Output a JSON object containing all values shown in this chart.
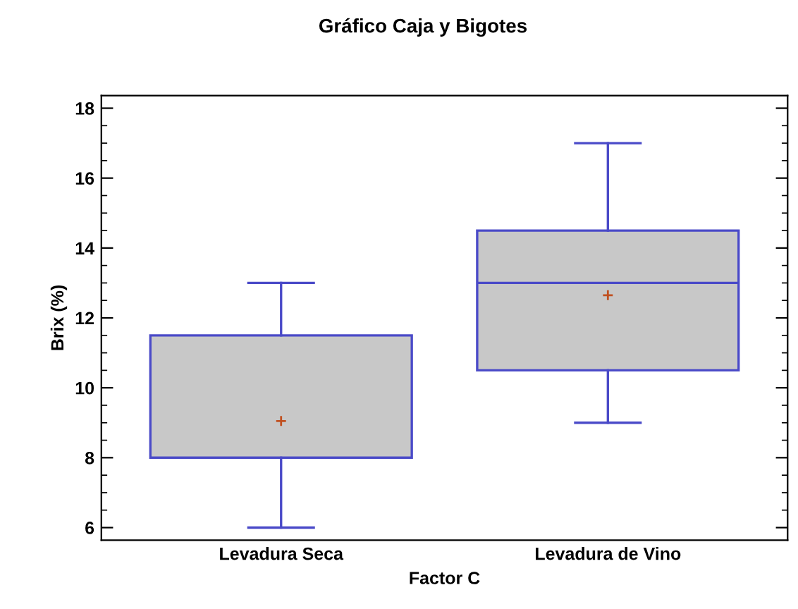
{
  "chart_data": {
    "type": "box",
    "title": "Gráfico Caja y Bigotes",
    "xlabel": "Factor C",
    "ylabel": "Brix (%)",
    "categories": [
      "Levadura Seca",
      "Levadura de Vino"
    ],
    "boxes": [
      {
        "low": 6,
        "q1": 8,
        "median": 8,
        "q3": 11.5,
        "high": 13,
        "mean": 9.05
      },
      {
        "low": 9,
        "q1": 10.5,
        "median": 13,
        "q3": 14.5,
        "high": 17,
        "mean": 12.65
      }
    ],
    "color": "#c8c8c8",
    "ylim": [
      5.64,
      18.36
    ],
    "yticks": [
      6,
      8,
      10,
      12,
      14,
      16,
      18
    ],
    "grid": false
  }
}
